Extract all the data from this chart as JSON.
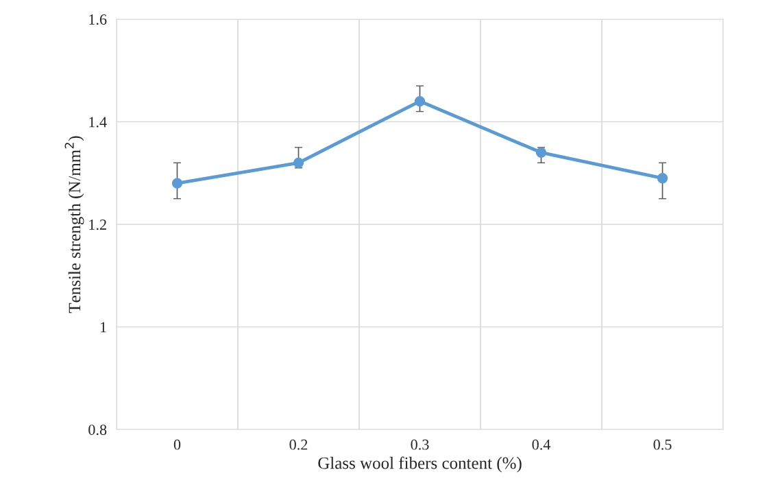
{
  "chart_data": {
    "type": "line",
    "xlabel": "Glass wool fibers content (%)",
    "ylabel": "Tensile strength (N/mm$^{2}$)",
    "categories": [
      "0",
      "0.2",
      "0.3",
      "0.4",
      "0.5"
    ],
    "series": [
      {
        "color": "#5b9bd5",
        "values": [
          1.28,
          1.32,
          1.44,
          1.34,
          1.29
        ],
        "errors": [
          [
            1.25,
            1.32
          ],
          [
            1.31,
            1.35
          ],
          [
            1.42,
            1.47
          ],
          [
            1.32,
            1.35
          ],
          [
            1.25,
            1.32
          ]
        ]
      }
    ],
    "ylim": [
      0.8,
      1.6
    ],
    "yticks": [
      0.8,
      1,
      1.2,
      1.4,
      1.6
    ],
    "grid": true,
    "marker": "circle",
    "line_style": "solid"
  }
}
